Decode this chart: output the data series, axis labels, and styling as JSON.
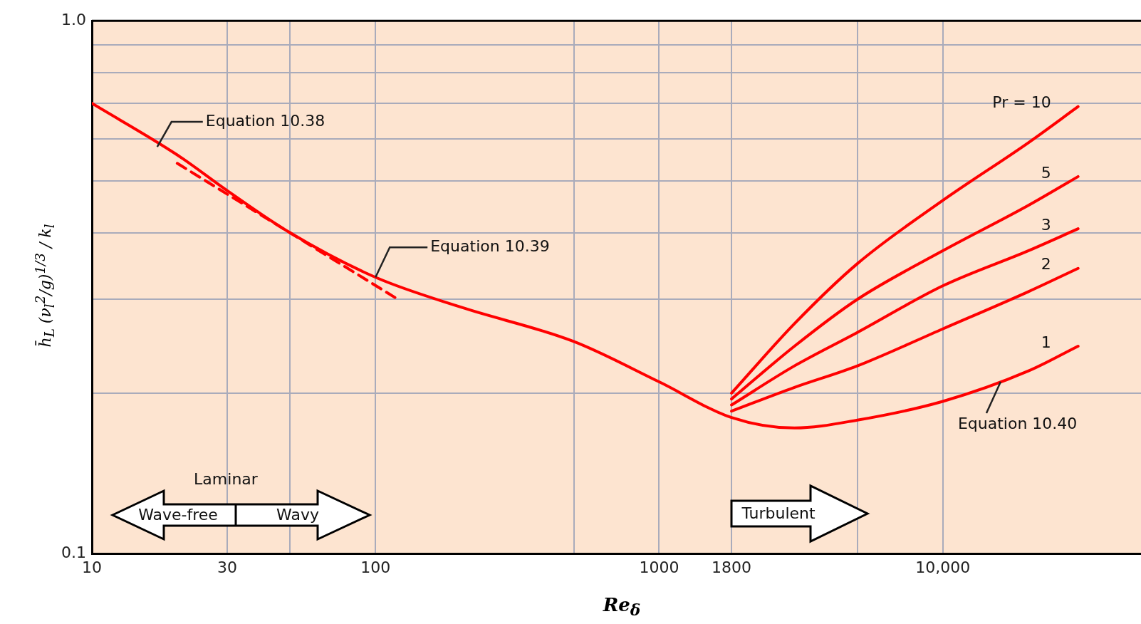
{
  "chart_data": {
    "type": "line",
    "xlabel": "Re$_{δ}$",
    "ylabel": "h̄$_{L}$ (ν$_{l}$$^{2}$/g)$^{1/3}$ / k$_{l}$",
    "log": "xy",
    "grid": true,
    "legend": false,
    "marker": "none",
    "line_style": "solid",
    "xlim": [
      10,
      50000
    ],
    "ylim": [
      0.1,
      1
    ],
    "xticks": [
      10,
      30,
      {
        "value": 50,
        "label": null
      },
      100,
      {
        "value": 500,
        "label": null
      },
      1000,
      1800,
      {
        "value": 5000,
        "label": null
      },
      {
        "value": 10000,
        "label": "10,000"
      }
    ],
    "yticks": [
      0.1,
      {
        "value": 0.2,
        "label": null
      },
      {
        "value": 0.3,
        "label": null
      },
      {
        "value": 0.4,
        "label": null
      },
      {
        "value": 0.5,
        "label": null
      },
      {
        "value": 0.6,
        "label": null
      },
      {
        "value": 0.7,
        "label": null
      },
      {
        "value": 0.8,
        "label": null
      },
      {
        "value": 0.9,
        "label": null
      },
      {
        "value": 1,
        "label": "1.0"
      }
    ],
    "series": [
      {
        "name": "1",
        "color": "#ff0000",
        "x": [
          10,
          20,
          30,
          50,
          100,
          200,
          500,
          1000,
          1800,
          3000,
          5000,
          10000,
          20000,
          30000
        ],
        "values": [
          0.7,
          0.56,
          0.48,
          0.4,
          0.33,
          0.29,
          0.25,
          0.21,
          0.18,
          0.172,
          0.178,
          0.193,
          0.22,
          0.245
        ]
      },
      {
        "color": "#ff0000",
        "line_style": "dashed",
        "x": [
          20,
          120
        ],
        "values": [
          0.54,
          0.3
        ]
      },
      {
        "name": "Pr = 10",
        "color": "#ff0000",
        "x": [
          1800,
          3000,
          5000,
          10000,
          20000,
          30000
        ],
        "values": [
          0.2,
          0.27,
          0.35,
          0.46,
          0.59,
          0.69
        ]
      },
      {
        "name": "5",
        "color": "#ff0000",
        "x": [
          1800,
          3000,
          5000,
          10000,
          20000,
          30000
        ],
        "values": [
          0.195,
          0.245,
          0.3,
          0.37,
          0.45,
          0.51
        ]
      },
      {
        "name": "3",
        "color": "#ff0000",
        "x": [
          1800,
          3000,
          5000,
          10000,
          20000,
          30000
        ],
        "values": [
          0.19,
          0.225,
          0.26,
          0.318,
          0.37,
          0.407
        ]
      },
      {
        "name": "2",
        "color": "#ff0000",
        "x": [
          1800,
          3000,
          5000,
          10000,
          20000,
          30000
        ],
        "values": [
          0.185,
          0.205,
          0.225,
          0.264,
          0.31,
          0.343
        ]
      }
    ],
    "annotations": [
      {
        "text": "Equation 10.38",
        "x": 17,
        "y": 0.58
      },
      {
        "text": "Equation 10.39",
        "x": 100,
        "y": 0.33
      },
      {
        "text": "Equation 10.40",
        "x": 16000,
        "y": 0.21
      },
      "Laminar",
      "Wave-free",
      "Wavy",
      "Turbulent"
    ]
  }
}
